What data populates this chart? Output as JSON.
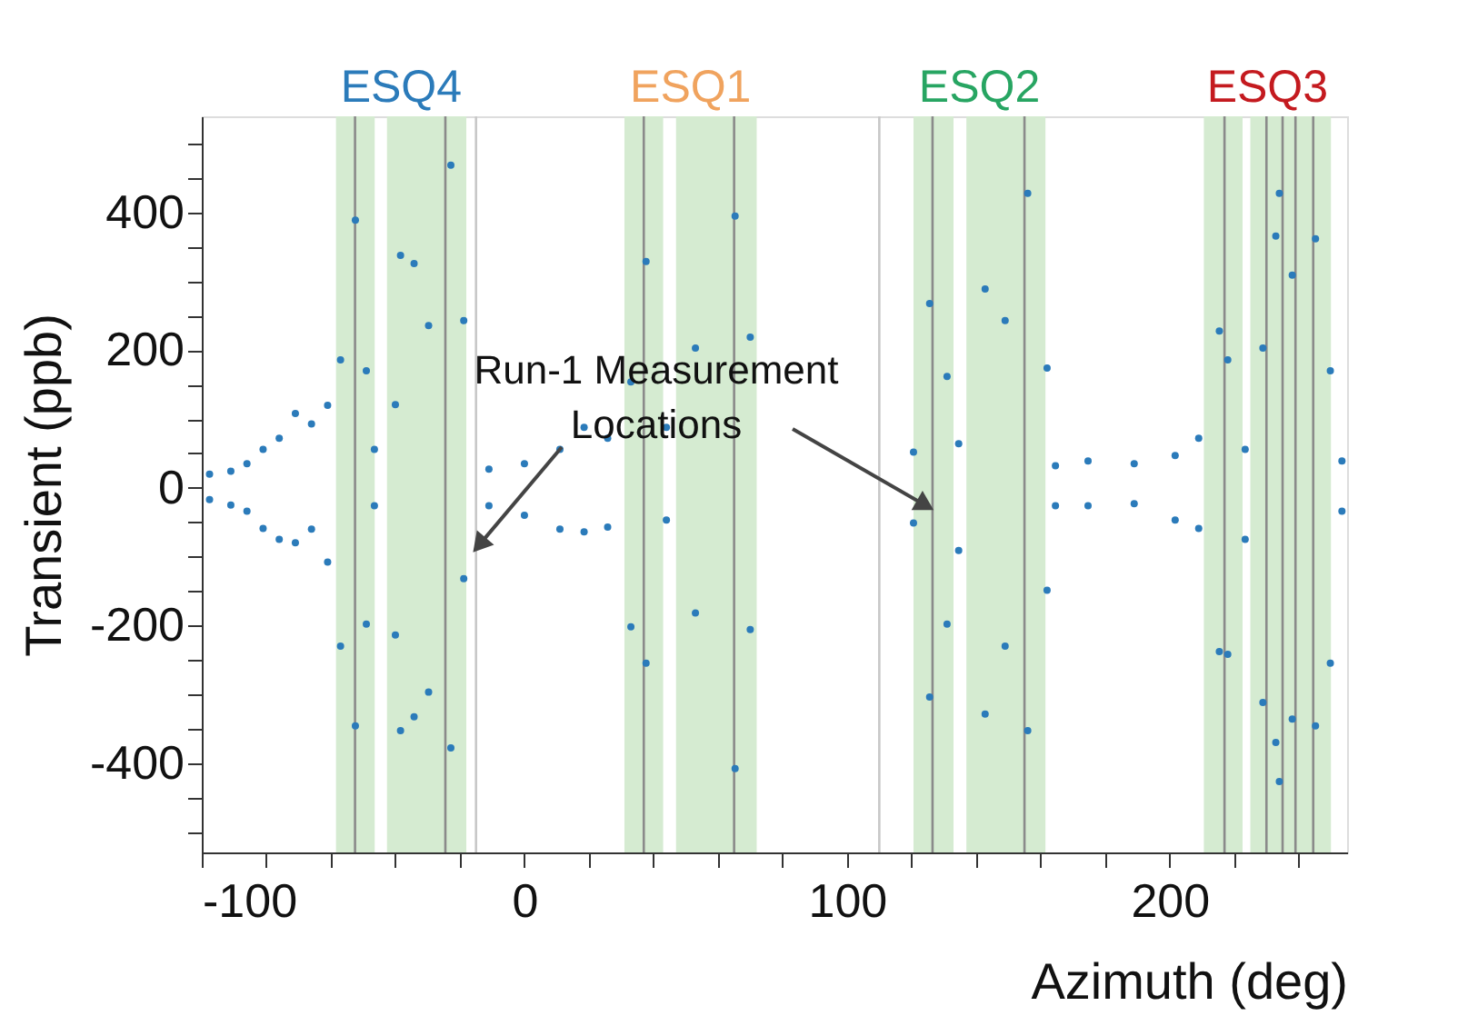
{
  "chart_data": {
    "type": "scatter",
    "xlabel": "Azimuth (deg)",
    "ylabel": "Transient (ppb)",
    "xlim": [
      -100,
      255
    ],
    "ylim": [
      -530,
      540
    ],
    "xticks": [
      -100,
      {
        "value": -80,
        "label": null
      },
      {
        "value": -60,
        "label": null
      },
      {
        "value": -40,
        "label": null
      },
      {
        "value": -20,
        "label": null
      },
      0,
      {
        "value": 20,
        "label": null
      },
      {
        "value": 40,
        "label": null
      },
      {
        "value": 60,
        "label": null
      },
      {
        "value": 80,
        "label": null
      },
      100,
      {
        "value": 120,
        "label": null
      },
      {
        "value": 140,
        "label": null
      },
      {
        "value": 160,
        "label": null
      },
      {
        "value": 180,
        "label": null
      },
      200,
      {
        "value": 220,
        "label": null
      },
      {
        "value": 240,
        "label": null
      }
    ],
    "yticks": [
      {
        "value": -500,
        "label": null
      },
      {
        "value": -450,
        "label": null
      },
      -400,
      {
        "value": -350,
        "label": null
      },
      {
        "value": -300,
        "label": null
      },
      {
        "value": -250,
        "label": null
      },
      -200,
      {
        "value": -150,
        "label": null
      },
      {
        "value": -100,
        "label": null
      },
      {
        "value": -50,
        "label": null
      },
      0,
      {
        "value": 50,
        "label": null
      },
      {
        "value": 100,
        "label": null
      },
      {
        "value": 150,
        "label": null
      },
      200,
      {
        "value": 250,
        "label": null
      },
      {
        "value": 300,
        "label": null
      },
      {
        "value": 350,
        "label": null
      },
      400,
      {
        "value": 450,
        "label": null
      },
      {
        "value": 500,
        "label": null
      }
    ],
    "grid": false,
    "legend": false,
    "marker": "circle",
    "series": [
      {
        "color": "#2b7bba",
        "x": [
          -97.6,
          -97.6,
          -91,
          -91,
          -86,
          -86,
          -81,
          -81,
          -76,
          -76,
          -71,
          -71,
          -66,
          -66,
          -61,
          -61,
          -57,
          -57,
          -52.4,
          -52.4,
          -49,
          -49,
          -46.5,
          -46.5,
          -40,
          -40,
          -38.4,
          -38.4,
          -34.2,
          -34.2,
          -29.7,
          -29.7,
          -22.8,
          -22.8,
          -18.8,
          -18.8,
          -11,
          -11,
          0,
          0,
          11,
          11,
          18.5,
          18.5,
          25.8,
          25.8,
          33,
          33,
          37.7,
          37.7,
          44,
          44,
          53,
          53,
          65.3,
          65.3,
          70,
          70,
          120.6,
          120.6,
          125.6,
          125.6,
          131,
          131,
          134.6,
          134.6,
          142.8,
          142.8,
          149,
          149,
          156,
          156,
          162,
          162,
          164.6,
          164.6,
          174.7,
          174.7,
          189,
          189,
          201.7,
          201.7,
          209,
          209,
          215.4,
          215.4,
          218,
          218,
          223.4,
          223.4,
          228.9,
          228.9,
          232.9,
          232.9,
          234,
          234,
          238,
          238,
          245.2,
          245.2,
          249.8,
          249.8,
          253.4,
          253.4
        ],
        "values": [
          20,
          -17,
          24,
          -25,
          35,
          -34,
          56,
          -59,
          72,
          -75,
          108,
          -80,
          93,
          -60,
          120,
          -108,
          186,
          -230,
          389,
          -346,
          170,
          -198,
          56,
          -26,
          121,
          -214,
          338,
          -353,
          326,
          -333,
          236,
          -297,
          469,
          -378,
          243,
          -132,
          27,
          -26,
          35,
          -40,
          56,
          -60,
          88,
          -64,
          72,
          -57,
          154,
          -202,
          329,
          -255,
          88,
          -47,
          203,
          -182,
          395,
          -408,
          219,
          -206,
          52,
          -51,
          268,
          -304,
          162,
          -198,
          64,
          -91,
          289,
          -329,
          243,
          -230,
          428,
          -353,
          174,
          -149,
          32,
          -26,
          39,
          -26,
          35,
          -23,
          47,
          -47,
          72,
          -59,
          228,
          -238,
          186,
          -242,
          56,
          -75,
          203,
          -312,
          366,
          -370,
          428,
          -427,
          309,
          -336,
          362,
          -346,
          170,
          -255,
          39,
          -34
        ]
      }
    ],
    "bands": [
      {
        "axis": "x",
        "from": -58.4,
        "to": -46.4,
        "color": "#d5ebd1"
      },
      {
        "axis": "x",
        "from": -42.6,
        "to": -18,
        "color": "#d5ebd1"
      },
      {
        "axis": "x",
        "from": 31,
        "to": 43,
        "color": "#d5ebd1"
      },
      {
        "axis": "x",
        "from": 47,
        "to": 72,
        "color": "#d5ebd1"
      },
      {
        "axis": "x",
        "from": 120.6,
        "to": 133,
        "color": "#d5ebd1"
      },
      {
        "axis": "x",
        "from": 137,
        "to": 161.5,
        "color": "#d5ebd1"
      },
      {
        "axis": "x",
        "from": 210.6,
        "to": 222.6,
        "color": "#d5ebd1"
      },
      {
        "axis": "x",
        "from": 225,
        "to": 250,
        "color": "#d5ebd1"
      }
    ],
    "ref_lines": [
      {
        "axis": "x",
        "value": -15,
        "color": "#c8c8c8"
      },
      {
        "axis": "x",
        "value": 110,
        "color": "#c8c8c8"
      },
      {
        "axis": "x",
        "value": -52.5,
        "color": "#8a8a8a"
      },
      {
        "axis": "x",
        "value": -24.5,
        "color": "#8a8a8a"
      },
      {
        "axis": "x",
        "value": 37,
        "color": "#8a8a8a"
      },
      {
        "axis": "x",
        "value": 65,
        "color": "#8a8a8a"
      },
      {
        "axis": "x",
        "value": 126.5,
        "color": "#8a8a8a"
      },
      {
        "axis": "x",
        "value": 155,
        "color": "#8a8a8a"
      },
      {
        "axis": "x",
        "value": 217,
        "color": "#8a8a8a"
      },
      {
        "axis": "x",
        "value": 230,
        "color": "#8a8a8a"
      },
      {
        "axis": "x",
        "value": 235,
        "color": "#8a8a8a"
      },
      {
        "axis": "x",
        "value": 239,
        "color": "#8a8a8a"
      },
      {
        "axis": "x",
        "value": 244.5,
        "color": "#8a8a8a"
      }
    ],
    "annotations": [
      "ESQ4",
      "ESQ1",
      "ESQ2",
      "ESQ3",
      {
        "text": "Run-1 Measurement\nLocations",
        "x": -14,
        "y": -83
      }
    ]
  }
}
